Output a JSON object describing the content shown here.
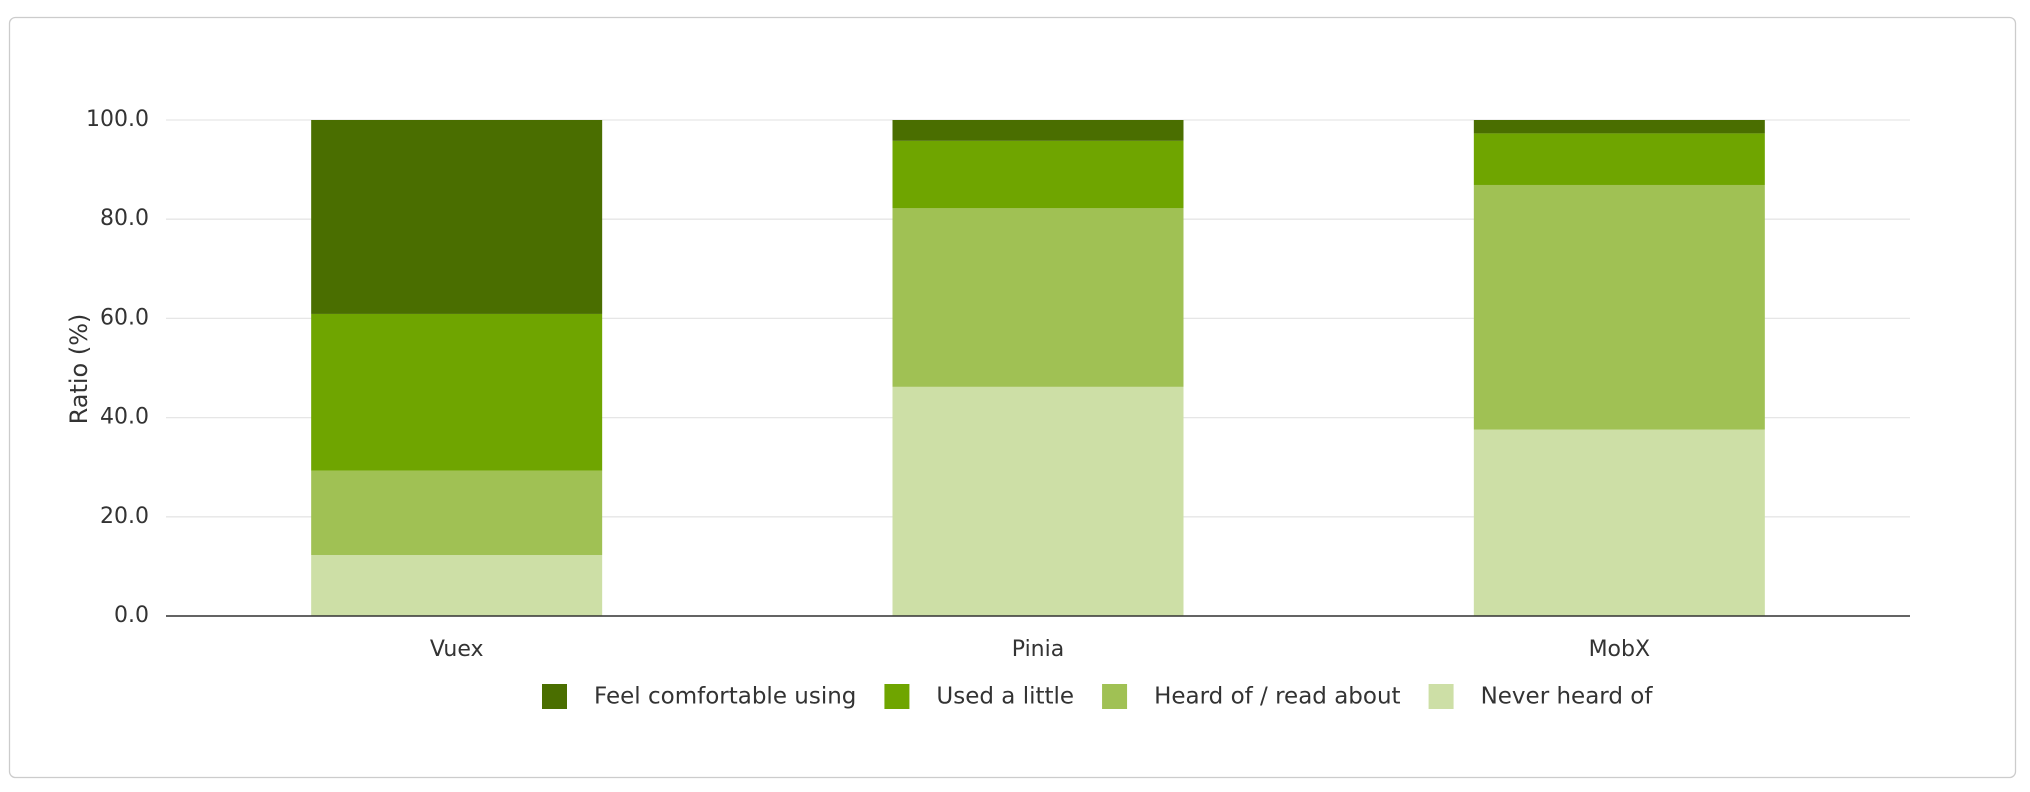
{
  "chart_data": {
    "type": "stacked_bar",
    "y_label": "Ratio (%)",
    "categories": [
      "Vuex",
      "Pinia",
      "MobX"
    ],
    "series": [
      {
        "name": "Feel comfortable using",
        "color": "#4a6e00",
        "values": [
          39.1,
          4.2,
          2.7
        ]
      },
      {
        "name": "Used a little",
        "color": "#6fa500",
        "values": [
          31.6,
          13.6,
          10.4
        ]
      },
      {
        "name": "Heard of / read about",
        "color": "#a0c154",
        "values": [
          17.0,
          36.0,
          49.3
        ]
      },
      {
        "name": "Never heard of",
        "color": "#cddfa6",
        "values": [
          12.3,
          46.2,
          37.6
        ]
      }
    ],
    "ylim": [
      0,
      100
    ],
    "yticks": [
      {
        "value": 0,
        "label": "0.0"
      },
      {
        "value": 20,
        "label": "20.0"
      },
      {
        "value": 40,
        "label": "40.0"
      },
      {
        "value": 60,
        "label": "60.0"
      },
      {
        "value": 80,
        "label": "80.0"
      },
      {
        "value": 100,
        "label": "100.0"
      }
    ],
    "grid": true
  }
}
